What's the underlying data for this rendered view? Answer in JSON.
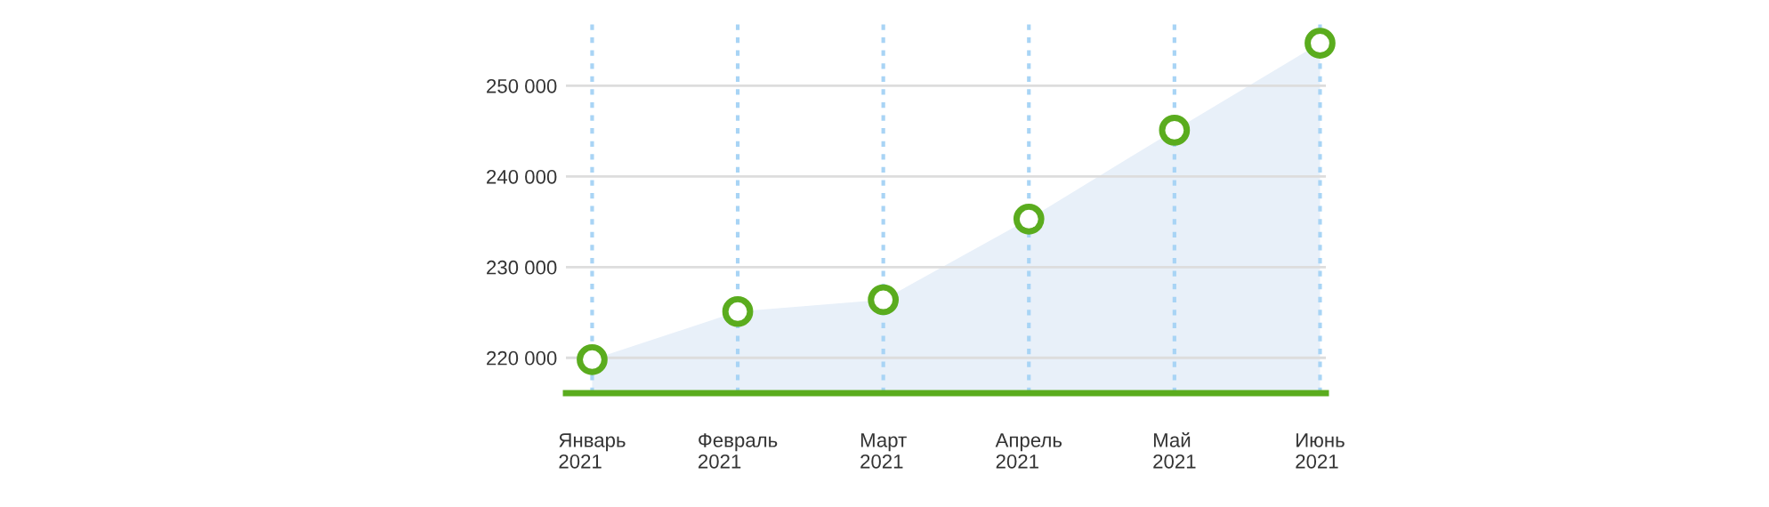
{
  "chart_data": {
    "type": "area",
    "categories": [
      "Январь\n2021",
      "Февраль\n2021",
      "Март\n2021",
      "Апрель\n2021",
      "Май\n2021",
      "Июнь\n2021"
    ],
    "series": [
      {
        "color": "#e8f0f9",
        "values": [
          219800,
          225100,
          226400,
          235300,
          245100,
          254700
        ]
      },
      {
        "type": "scatter",
        "marker": "circle",
        "color": "#5aac1e",
        "values": [
          219800,
          225100,
          226400,
          235300,
          245100,
          254700
        ]
      }
    ],
    "ylim": [
      216100,
      257500
    ],
    "yticks": [
      {
        "value": 220000,
        "label": "220 000"
      },
      {
        "value": 230000,
        "label": "230 000"
      },
      {
        "value": 240000,
        "label": "240 000"
      },
      {
        "value": 250000,
        "label": "250 000"
      }
    ],
    "grid": true,
    "legend": false
  }
}
